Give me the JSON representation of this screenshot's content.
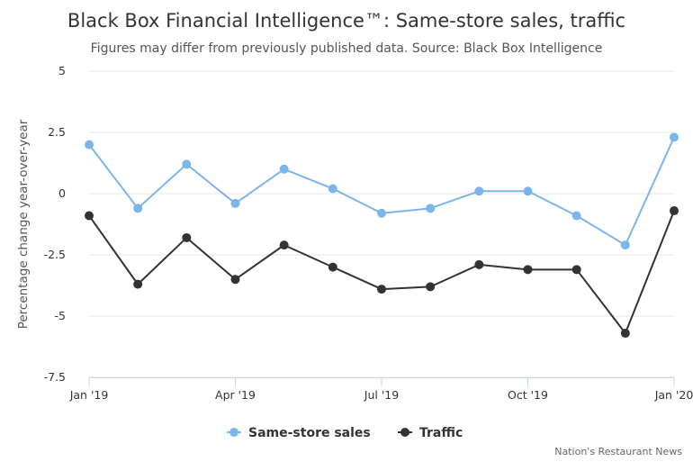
{
  "chart_data": {
    "type": "line",
    "title": "Black Box Financial Intelligence™: Same-store sales, traffic",
    "subtitle": "Figures may differ from previously published data. Source: Black Box Intelligence",
    "ylabel": "Percentage change year-over-year",
    "ylim": [
      -7.5,
      5
    ],
    "yticks": [
      "5",
      "2.5",
      "0",
      "-2.5",
      "-5",
      "-7.5"
    ],
    "ytick_values": [
      5,
      2.5,
      0,
      -2.5,
      -5,
      -7.5
    ],
    "xticks": [
      {
        "label": "Jan '19",
        "index": 0
      },
      {
        "label": "Apr '19",
        "index": 3
      },
      {
        "label": "Jul '19",
        "index": 6
      },
      {
        "label": "Oct '19",
        "index": 9
      },
      {
        "label": "Jan '20",
        "index": 12
      }
    ],
    "x": [
      "2019-01",
      "2019-02",
      "2019-03",
      "2019-04",
      "2019-05",
      "2019-06",
      "2019-07",
      "2019-08",
      "2019-09",
      "2019-10",
      "2019-11",
      "2019-12",
      "2020-01"
    ],
    "series": [
      {
        "name": "Same-store sales",
        "color": "#7cb5ec",
        "values": [
          2.0,
          -0.6,
          1.2,
          -0.4,
          1.0,
          0.2,
          -0.8,
          -0.6,
          0.1,
          0.1,
          -0.9,
          -2.1,
          2.3
        ]
      },
      {
        "name": "Traffic",
        "color": "#333333",
        "values": [
          -0.9,
          -3.7,
          -1.8,
          -3.5,
          -2.1,
          -3.0,
          -3.9,
          -3.8,
          -2.9,
          -3.1,
          -3.1,
          -5.7,
          -0.7
        ]
      }
    ],
    "grid": {
      "horizontal": true,
      "vertical": false
    },
    "legend": "bottom-center"
  },
  "credit": "Nation's Restaurant News"
}
